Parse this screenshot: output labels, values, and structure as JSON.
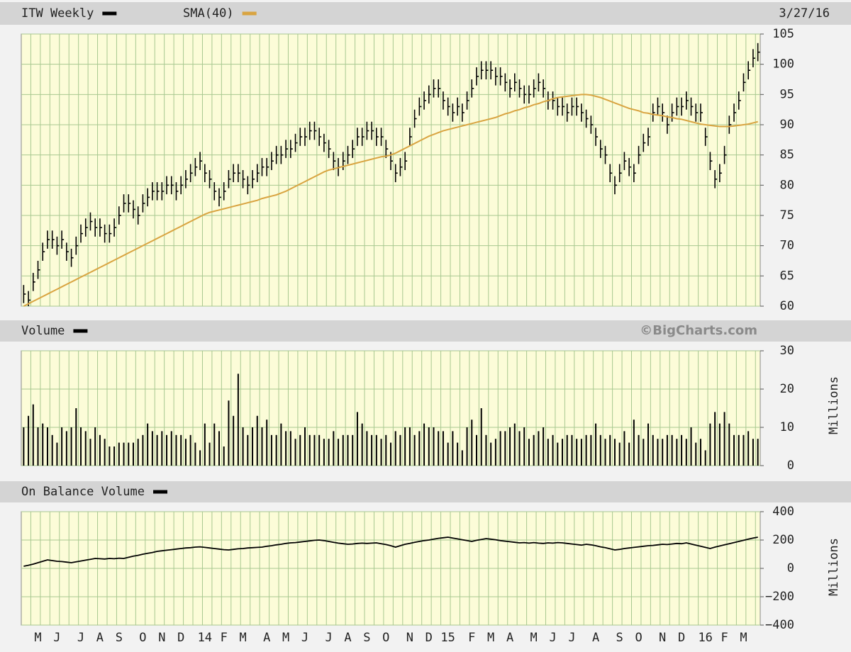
{
  "chart_data": [
    {
      "type": "hlc",
      "date": "3/27/16",
      "categories": [
        null,
        null,
        null,
        "M",
        null,
        null,
        null,
        "J",
        null,
        null,
        null,
        null,
        "J",
        null,
        null,
        null,
        "A",
        null,
        null,
        null,
        "S",
        null,
        null,
        null,
        null,
        "O",
        null,
        null,
        null,
        "N",
        null,
        null,
        null,
        "D",
        null,
        null,
        null,
        null,
        "14",
        null,
        null,
        null,
        "F",
        null,
        null,
        null,
        "M",
        null,
        null,
        null,
        null,
        "A",
        null,
        null,
        null,
        "M",
        null,
        null,
        null,
        "J",
        null,
        null,
        null,
        null,
        "J",
        null,
        null,
        null,
        "A",
        null,
        null,
        null,
        "S",
        null,
        null,
        null,
        "O",
        null,
        null,
        null,
        null,
        "N",
        null,
        null,
        null,
        "D",
        null,
        null,
        null,
        "15",
        null,
        null,
        null,
        null,
        "F",
        null,
        null,
        null,
        "M",
        null,
        null,
        null,
        "A",
        null,
        null,
        null,
        null,
        "M",
        null,
        null,
        null,
        "J",
        null,
        null,
        null,
        "J",
        null,
        null,
        null,
        null,
        "A",
        null,
        null,
        null,
        null,
        "S",
        null,
        null,
        null,
        "O",
        null,
        null,
        null,
        null,
        "N",
        null,
        null,
        null,
        "D",
        null,
        null,
        null,
        null,
        "16",
        null,
        null,
        null,
        "F",
        null,
        null,
        null,
        "M",
        null,
        null,
        null
      ],
      "series": [
        {
          "name": "ITW Weekly",
          "color": "#000000",
          "high": [
            63.5,
            62.5,
            65.5,
            67.5,
            70.5,
            72.5,
            72.5,
            71.5,
            72.5,
            70.5,
            69.5,
            71.5,
            73.5,
            74.5,
            75.5,
            74.5,
            74.5,
            73.5,
            73.5,
            74.5,
            76.5,
            78.5,
            78.5,
            77.5,
            76.5,
            78.5,
            79.5,
            80.5,
            80.5,
            80.5,
            81.5,
            81.5,
            80.5,
            81.5,
            82.5,
            83.5,
            84.5,
            85.5,
            83.5,
            82.5,
            80.5,
            79.5,
            80.5,
            82.5,
            83.5,
            83.5,
            82.5,
            81.5,
            82.5,
            83.5,
            84.5,
            84.5,
            85.5,
            86.5,
            86.5,
            87.5,
            87.5,
            88.5,
            89.5,
            89.5,
            90.5,
            90.5,
            89.5,
            88.5,
            87.5,
            85.5,
            84.5,
            85.5,
            86.5,
            87.5,
            89.5,
            89.5,
            90.5,
            90.5,
            89.5,
            89.5,
            87.5,
            85.5,
            83.5,
            84.5,
            85.5,
            89.5,
            92.5,
            94.5,
            95.5,
            96.5,
            97.5,
            97.5,
            95.5,
            94.5,
            93.5,
            94.5,
            93.5,
            95.5,
            97.5,
            99.5,
            100.5,
            100.5,
            100.5,
            99.5,
            99.5,
            98.5,
            97.5,
            98.5,
            97.5,
            96.5,
            96.5,
            97.5,
            98.5,
            97.5,
            95.5,
            95.5,
            94.5,
            94.5,
            93.5,
            94.5,
            94.5,
            93.5,
            92.5,
            91.5,
            89.5,
            87.5,
            86.5,
            83.5,
            81.5,
            83.5,
            85.5,
            84.5,
            83.5,
            86.5,
            88.5,
            89.5,
            93.5,
            94.5,
            93.5,
            91.5,
            93.5,
            94.5,
            94.5,
            95.5,
            94.5,
            93.5,
            93.5,
            89.5,
            85.5,
            82.5,
            83.5,
            86.5,
            91.5,
            93.5,
            95.5,
            98.5,
            100.5,
            102.5,
            103.5
          ],
          "low": [
            60.5,
            60,
            62.5,
            64.5,
            67.5,
            69.5,
            69.5,
            68.5,
            69.5,
            67.5,
            66.5,
            68.5,
            70.5,
            71.5,
            72.5,
            71.5,
            71.5,
            70.5,
            70.5,
            71.5,
            73.5,
            75.5,
            75.5,
            74.5,
            73.5,
            75.5,
            76.5,
            77.5,
            77.5,
            77.5,
            78.5,
            78.5,
            77.5,
            78.5,
            79.5,
            80.5,
            81.5,
            82.5,
            80.5,
            79.5,
            77.5,
            76.5,
            77.5,
            79.5,
            80.5,
            80.5,
            79.5,
            78.5,
            79.5,
            80.5,
            81.5,
            81.5,
            82.5,
            83.5,
            83.5,
            84.5,
            84.5,
            85.5,
            86.5,
            86.5,
            87.5,
            87.5,
            86.5,
            85.5,
            84.5,
            82.5,
            81.5,
            82.5,
            83.5,
            84.5,
            86.5,
            86.5,
            87.5,
            87.5,
            86.5,
            86.5,
            84.5,
            82.5,
            80.5,
            81.5,
            82.5,
            86.5,
            89.5,
            91.5,
            92.5,
            93.5,
            94.5,
            94.5,
            92.5,
            91.5,
            90.5,
            91.5,
            90.5,
            92.5,
            94.5,
            96.5,
            97.5,
            97.5,
            97.5,
            96.5,
            96.5,
            95.5,
            94.5,
            95.5,
            94.5,
            93.5,
            93.5,
            94.5,
            95.5,
            94.5,
            92.5,
            92.5,
            91.5,
            91.5,
            90.5,
            91.5,
            91.5,
            90.5,
            89.5,
            88.5,
            86.5,
            84.5,
            83.5,
            80.5,
            78.5,
            80.5,
            82.5,
            81.5,
            80.5,
            83.5,
            85.5,
            86.5,
            90.5,
            91.5,
            90.5,
            88.5,
            90.5,
            91.5,
            91.5,
            92.5,
            91.5,
            90.5,
            90.5,
            86.5,
            82.5,
            79.5,
            80.5,
            83.5,
            88.5,
            90.5,
            92.5,
            95.5,
            97.5,
            99.5,
            100.5
          ],
          "close": [
            62,
            61,
            64,
            66,
            69,
            71,
            71,
            70,
            71,
            69,
            68,
            70,
            72,
            73,
            74,
            73,
            73,
            72,
            72,
            73,
            75,
            77,
            77,
            76,
            75,
            77,
            78,
            79,
            79,
            79,
            80,
            80,
            79,
            80,
            81,
            82,
            83,
            84,
            82,
            81,
            79,
            78,
            79,
            81,
            82,
            82,
            81,
            80,
            81,
            82,
            83,
            83,
            84,
            85,
            85,
            86,
            86,
            87,
            88,
            88,
            89,
            89,
            88,
            87,
            86,
            84,
            83,
            84,
            85,
            86,
            88,
            88,
            89,
            89,
            88,
            88,
            86,
            84,
            82,
            83,
            84,
            88,
            91,
            93,
            94,
            95,
            96,
            96,
            94,
            93,
            92,
            93,
            92,
            94,
            96,
            98,
            99,
            99,
            99,
            98,
            98,
            97,
            96,
            97,
            96,
            95,
            95,
            96,
            97,
            96,
            94,
            94,
            93,
            93,
            92,
            93,
            93,
            92,
            91,
            90,
            88,
            86,
            85,
            82,
            80,
            82,
            84,
            83,
            82,
            85,
            87,
            88,
            92,
            93,
            92,
            90,
            92,
            93,
            93,
            94,
            93,
            92,
            92,
            88,
            84,
            81,
            82,
            85,
            90,
            92,
            94,
            97,
            99,
            101,
            102
          ]
        },
        {
          "name": "SMA(40)",
          "color": "#d9a441",
          "values": [
            60.0,
            60.4,
            60.8,
            61.2,
            61.6,
            62.0,
            62.4,
            62.8,
            63.2,
            63.6,
            64.0,
            64.4,
            64.8,
            65.2,
            65.6,
            66.0,
            66.4,
            66.8,
            67.2,
            67.6,
            68.0,
            68.4,
            68.8,
            69.2,
            69.6,
            70.0,
            70.4,
            70.8,
            71.2,
            71.6,
            72.0,
            72.4,
            72.8,
            73.2,
            73.6,
            74.0,
            74.4,
            74.8,
            75.2,
            75.5,
            75.7,
            75.9,
            76.1,
            76.3,
            76.5,
            76.7,
            76.9,
            77.1,
            77.3,
            77.5,
            77.8,
            78.0,
            78.2,
            78.4,
            78.7,
            79.0,
            79.4,
            79.8,
            80.2,
            80.6,
            81.0,
            81.4,
            81.8,
            82.2,
            82.5,
            82.7,
            82.9,
            83.1,
            83.3,
            83.5,
            83.7,
            83.9,
            84.1,
            84.3,
            84.5,
            84.7,
            84.8,
            85.0,
            85.3,
            85.7,
            86.1,
            86.5,
            86.9,
            87.3,
            87.7,
            88.1,
            88.4,
            88.7,
            89.0,
            89.2,
            89.4,
            89.6,
            89.8,
            90.0,
            90.2,
            90.4,
            90.6,
            90.8,
            91.0,
            91.2,
            91.5,
            91.8,
            92.0,
            92.3,
            92.5,
            92.8,
            93.0,
            93.3,
            93.5,
            93.8,
            94.0,
            94.3,
            94.5,
            94.6,
            94.7,
            94.8,
            94.9,
            95.0,
            95.0,
            94.9,
            94.7,
            94.5,
            94.2,
            93.9,
            93.6,
            93.3,
            93.0,
            92.7,
            92.5,
            92.3,
            92.0,
            91.9,
            91.7,
            91.6,
            91.5,
            91.3,
            91.2,
            91.0,
            90.9,
            90.7,
            90.5,
            90.3,
            90.1,
            90.0,
            89.9,
            89.8,
            89.7,
            89.7,
            89.7,
            89.8,
            89.9,
            90.0,
            90.1,
            90.3,
            90.5
          ]
        }
      ],
      "ylim": [
        60,
        105
      ],
      "yticks": [
        60,
        65,
        70,
        75,
        80,
        85,
        90,
        95,
        100,
        105
      ],
      "grid": true
    },
    {
      "type": "bar",
      "annotation": "©BigCharts.com",
      "ylabel": "Millions",
      "series": [
        {
          "name": "Volume",
          "color": "#000000",
          "values": [
            10,
            13,
            16,
            10,
            11,
            10,
            8,
            6,
            10,
            9,
            10,
            15,
            10,
            9,
            7,
            10,
            8,
            7,
            5,
            5,
            6,
            6,
            6,
            6,
            7,
            8,
            11,
            9,
            8,
            9,
            8,
            9,
            8,
            8,
            7,
            8,
            6,
            4,
            11,
            6,
            11,
            9,
            5,
            17,
            13,
            24,
            10,
            8,
            10,
            13,
            10,
            12,
            8,
            8,
            11,
            9,
            9,
            7,
            8,
            10,
            8,
            8,
            8,
            7,
            7,
            9,
            7,
            8,
            8,
            8,
            14,
            11,
            9,
            8,
            8,
            7,
            8,
            6,
            9,
            8,
            10,
            10,
            8,
            9,
            11,
            10,
            10,
            9,
            9,
            6,
            9,
            6,
            4,
            10,
            12,
            8,
            15,
            8,
            6,
            7,
            9,
            9,
            10,
            11,
            9,
            10,
            7,
            8,
            9,
            10,
            7,
            8,
            6,
            7,
            8,
            8,
            7,
            7,
            8,
            8,
            11,
            8,
            7,
            8,
            7,
            6,
            9,
            6,
            12,
            8,
            7,
            11,
            8,
            7,
            7,
            8,
            8,
            7,
            8,
            7,
            10,
            6,
            7,
            4,
            11,
            14,
            11,
            14,
            11,
            8,
            8,
            8,
            9,
            7,
            7
          ]
        }
      ],
      "ylim": [
        0,
        30
      ],
      "yticks": [
        0,
        10,
        20,
        30
      ],
      "grid": true
    },
    {
      "type": "line",
      "ylabel": "Millions",
      "series": [
        {
          "name": "On Balance Volume",
          "color": "#000000",
          "values": [
            15,
            22,
            30,
            40,
            50,
            60,
            55,
            50,
            48,
            44,
            40,
            46,
            52,
            58,
            64,
            70,
            68,
            66,
            70,
            68,
            72,
            70,
            78,
            86,
            92,
            100,
            106,
            112,
            120,
            124,
            128,
            132,
            136,
            140,
            144,
            146,
            150,
            152,
            148,
            144,
            140,
            136,
            132,
            130,
            134,
            138,
            140,
            144,
            146,
            148,
            150,
            156,
            160,
            166,
            170,
            176,
            180,
            182,
            186,
            190,
            194,
            198,
            200,
            196,
            190,
            184,
            178,
            174,
            170,
            172,
            176,
            178,
            176,
            178,
            180,
            174,
            168,
            160,
            150,
            160,
            170,
            176,
            184,
            190,
            196,
            200,
            206,
            212,
            216,
            220,
            214,
            208,
            202,
            196,
            190,
            198,
            204,
            210,
            206,
            202,
            196,
            192,
            188,
            184,
            180,
            182,
            178,
            182,
            178,
            176,
            180,
            178,
            182,
            180,
            176,
            172,
            168,
            164,
            170,
            166,
            160,
            152,
            146,
            138,
            130,
            134,
            140,
            144,
            148,
            152,
            156,
            160,
            162,
            166,
            170,
            168,
            172,
            176,
            174,
            180,
            172,
            164,
            156,
            148,
            140,
            150,
            158,
            166,
            174,
            182,
            190,
            198,
            206,
            214,
            220
          ]
        }
      ],
      "ylim": [
        -400,
        400
      ],
      "yticks": [
        {
          "value": -400,
          "label": "−400"
        },
        {
          "value": -200,
          "label": "−200"
        },
        0,
        200,
        400
      ],
      "grid": true
    }
  ]
}
